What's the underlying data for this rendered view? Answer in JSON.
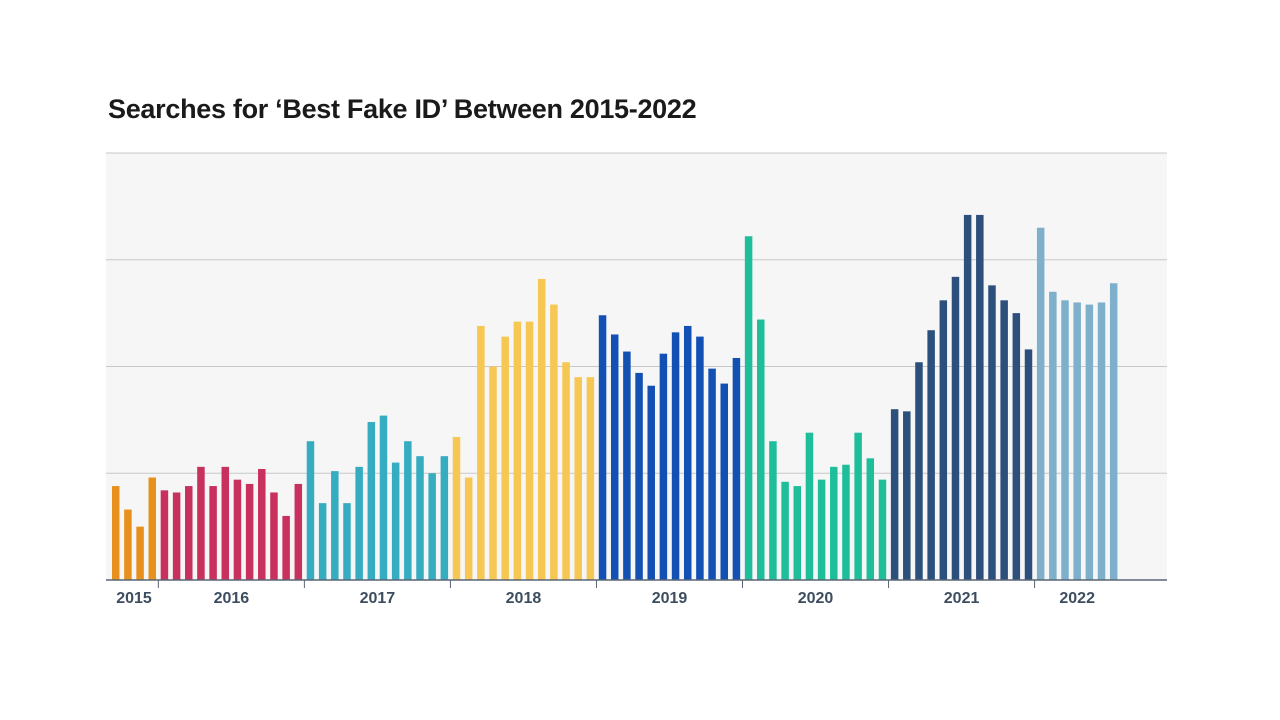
{
  "title": "Searches for ‘Best Fake ID’ Between 2015-2022",
  "chart_data": {
    "type": "bar",
    "title": "Searches for ‘Best Fake ID’ Between 2015-2022",
    "xlabel": "",
    "ylabel": "",
    "ylim": [
      0,
      100
    ],
    "grid": true,
    "legend": "none",
    "groups": [
      {
        "label": "2015",
        "color": "#E8901E",
        "values": [
          22,
          16.5,
          12.5,
          24
        ]
      },
      {
        "label": "2016",
        "color": "#C8305E",
        "values": [
          21,
          20.5,
          22,
          26.5,
          22,
          26.5,
          23.5,
          22.5,
          26,
          20.5,
          15,
          22.5
        ]
      },
      {
        "label": "2017",
        "color": "#36ACC1",
        "values": [
          32.5,
          18,
          25.5,
          18,
          26.5,
          37,
          38.5,
          27.5,
          32.5,
          29,
          25,
          29
        ]
      },
      {
        "label": "2018",
        "color": "#F6C752",
        "values": [
          33.5,
          24,
          59.5,
          50,
          57,
          60.5,
          60.5,
          70.5,
          64.5,
          51,
          47.5,
          47.5
        ]
      },
      {
        "label": "2019",
        "color": "#1350B4",
        "values": [
          62,
          57.5,
          53.5,
          48.5,
          45.5,
          53,
          58,
          59.5,
          57,
          49.5,
          46,
          52
        ]
      },
      {
        "label": "2020",
        "color": "#1FBE9B",
        "values": [
          80.5,
          61,
          32.5,
          23,
          22,
          34.5,
          23.5,
          26.5,
          27,
          34.5,
          28.5,
          23.5
        ]
      },
      {
        "label": "2021",
        "color": "#2D4F7C",
        "values": [
          40,
          39.5,
          51,
          58.5,
          65.5,
          71,
          85.5,
          85.5,
          69,
          65.5,
          62.5,
          54
        ]
      },
      {
        "label": "2022",
        "color": "#7FB0CB",
        "values": [
          82.5,
          67.5,
          65.5,
          65,
          64.5,
          65,
          69.5
        ]
      }
    ]
  }
}
